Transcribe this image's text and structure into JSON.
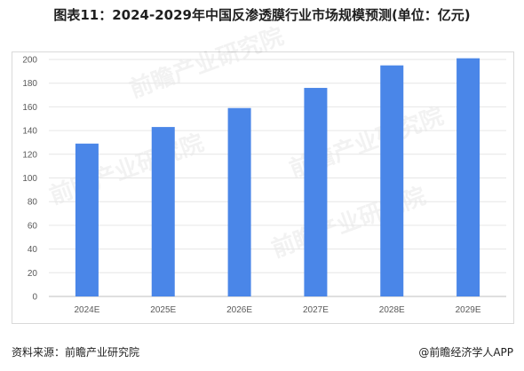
{
  "title": "图表11：2024-2029年中国反渗透膜行业市场规模预测(单位：亿元)",
  "source": "资料来源：前瞻产业研究院",
  "brand": "@前瞻经济学人APP",
  "watermark": "前瞻产业研究院",
  "colors": {
    "bar": "#4a86e8",
    "grid": "#e6e6e6",
    "axis": "#bfbfbf"
  },
  "chart_data": {
    "type": "bar",
    "categories": [
      "2024E",
      "2025E",
      "2026E",
      "2027E",
      "2028E",
      "2029E"
    ],
    "values": [
      129,
      143,
      159,
      176,
      195,
      201
    ],
    "ylim": [
      0,
      200
    ],
    "yticks": [
      0,
      20,
      40,
      60,
      80,
      100,
      120,
      140,
      160,
      180,
      200
    ],
    "grid": true,
    "xlabel": "",
    "ylabel": ""
  }
}
